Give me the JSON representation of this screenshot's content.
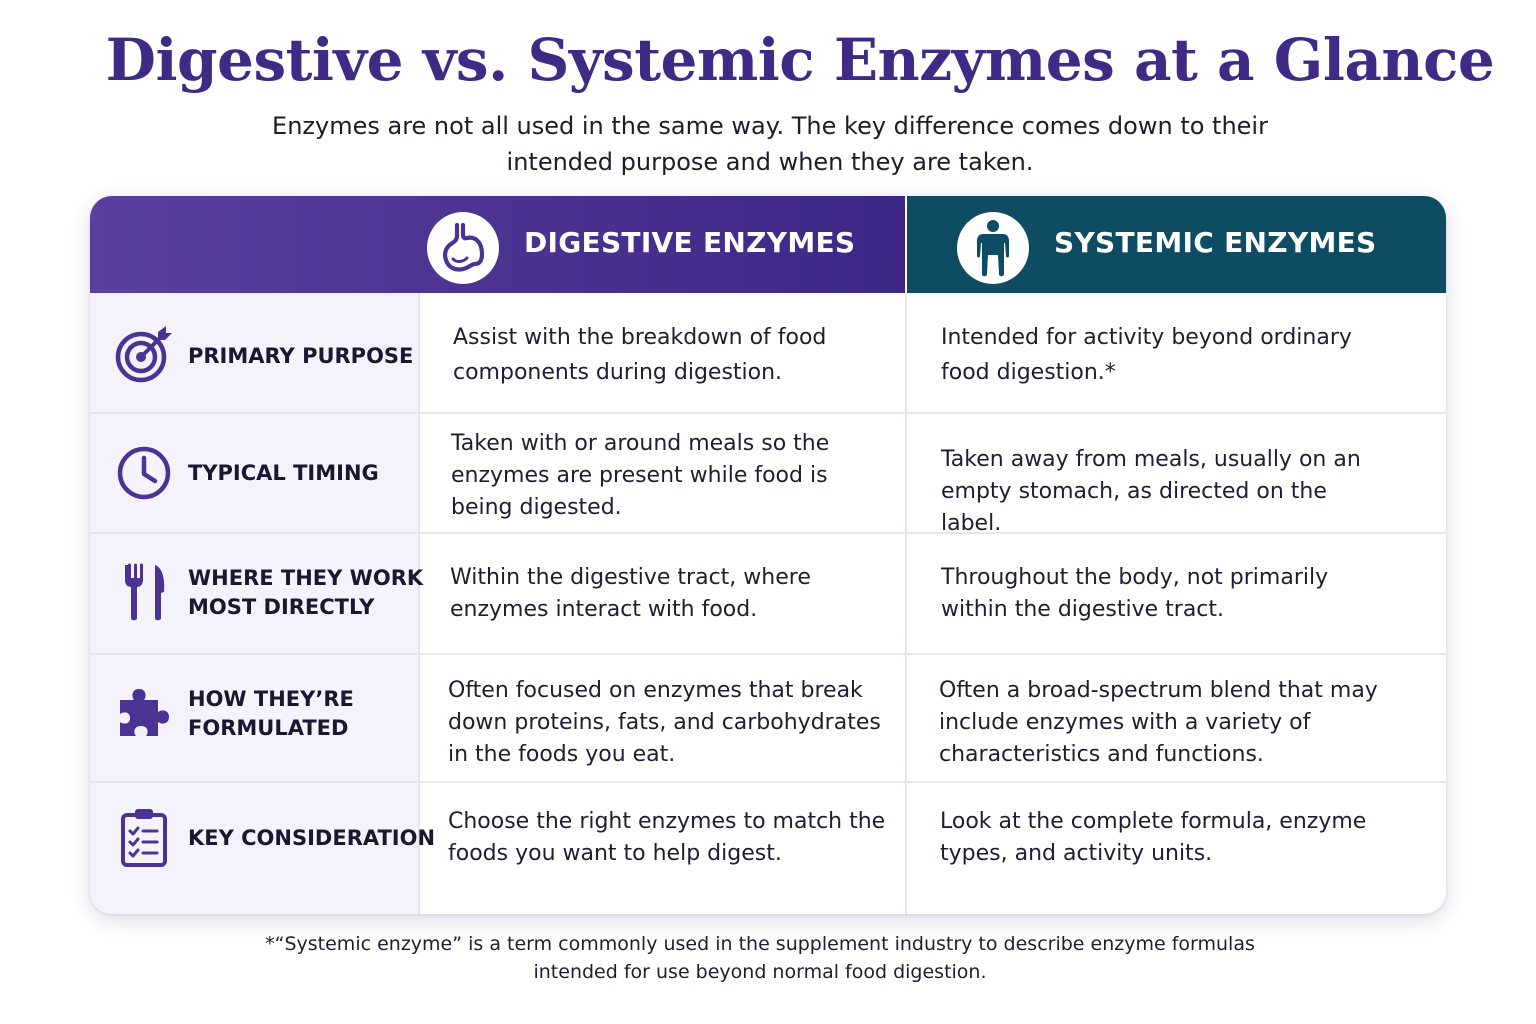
{
  "title": "Digestive vs. Systemic Enzymes at a Glance",
  "subtitle": "Enzymes are not all used in the same way. The key difference comes down to their intended purpose and when they are taken.",
  "columns": {
    "digestive": {
      "label": "DIGESTIVE ENZYMES",
      "icon": "stomach-icon"
    },
    "systemic": {
      "label": "SYSTEMIC ENZYMES",
      "icon": "body-icon"
    }
  },
  "rows": [
    {
      "label_line1": "PRIMARY PURPOSE",
      "label_line2": "",
      "icon": "target-icon",
      "digestive": "Assist with the breakdown of food components during digestion.",
      "systemic": "Intended for activity beyond ordinary food digestion.*"
    },
    {
      "label_line1": "TYPICAL TIMING",
      "label_line2": "",
      "icon": "clock-icon",
      "digestive": "Taken with or around meals so the enzymes are present while food is being digested.",
      "systemic": "Taken away from meals, usually on an empty stomach, as directed on the label."
    },
    {
      "label_line1": "WHERE THEY WORK",
      "label_line2": "MOST DIRECTLY",
      "icon": "fork-knife-icon",
      "digestive": "Within the digestive tract, where enzymes interact with food.",
      "systemic": "Throughout the body, not primarily within the digestive tract."
    },
    {
      "label_line1": "HOW THEY’RE",
      "label_line2": "FORMULATED",
      "icon": "puzzle-icon",
      "digestive": "Often focused on enzymes that break down proteins, fats, and carbohydrates in the foods you eat.",
      "systemic": "Often a broad-spectrum blend that may include enzymes with a variety of characteristics and functions."
    },
    {
      "label_line1": "KEY CONSIDERATION",
      "label_line2": "",
      "icon": "clipboard-checklist-icon",
      "digestive": "Choose the right enzymes to match the foods you want to help digest.",
      "systemic": "Look at the complete formula, enzyme types, and activity units."
    }
  ],
  "footnote": "*“Systemic enzyme” is a term commonly used in the supplement industry to describe enzyme formulas intended for use beyond normal food digestion.",
  "colors": {
    "title": "#3f2b86",
    "digestive_header": "#4a3393",
    "systemic_header": "#0e4c64",
    "icon_purple": "#4a3393",
    "label_bg": "#f4f3fb"
  }
}
